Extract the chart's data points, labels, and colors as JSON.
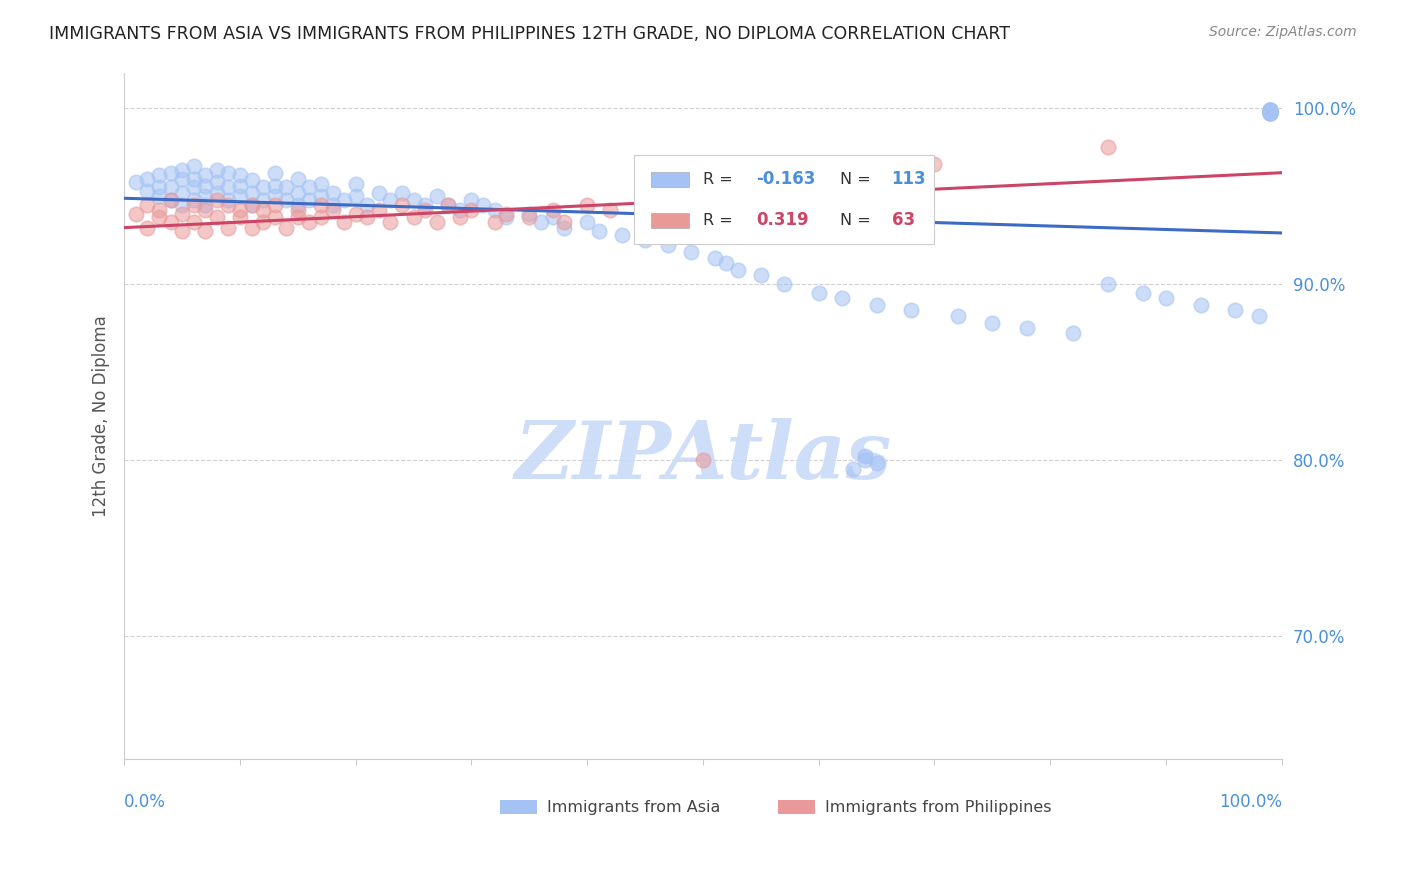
{
  "title": "IMMIGRANTS FROM ASIA VS IMMIGRANTS FROM PHILIPPINES 12TH GRADE, NO DIPLOMA CORRELATION CHART",
  "source": "Source: ZipAtlas.com",
  "ylabel": "12th Grade, No Diploma",
  "legend_blue_label": "Immigrants from Asia",
  "legend_pink_label": "Immigrants from Philippines",
  "r_blue": -0.163,
  "r_pink": 0.319,
  "n_blue": 113,
  "n_pink": 63,
  "blue_color": "#a4c2f4",
  "pink_color": "#ea9999",
  "blue_line_color": "#3d6bc4",
  "pink_line_color": "#cc4466",
  "title_color": "#222222",
  "tick_color": "#4a90d9",
  "watermark_color": "#c9daf8",
  "background_color": "#ffffff",
  "grid_color": "#cccccc",
  "xlim": [
    0.0,
    1.0
  ],
  "ylim": [
    0.63,
    1.02
  ],
  "yticks": [
    0.7,
    0.8,
    0.9,
    1.0
  ],
  "ytick_labels": [
    "70.0%",
    "80.0%",
    "90.0%",
    "100.0%"
  ],
  "blue_scatter_x": [
    0.01,
    0.02,
    0.02,
    0.03,
    0.03,
    0.03,
    0.04,
    0.04,
    0.04,
    0.05,
    0.05,
    0.05,
    0.05,
    0.06,
    0.06,
    0.06,
    0.06,
    0.07,
    0.07,
    0.07,
    0.07,
    0.08,
    0.08,
    0.08,
    0.09,
    0.09,
    0.09,
    0.1,
    0.1,
    0.1,
    0.11,
    0.11,
    0.11,
    0.12,
    0.12,
    0.13,
    0.13,
    0.13,
    0.14,
    0.14,
    0.15,
    0.15,
    0.15,
    0.16,
    0.16,
    0.17,
    0.17,
    0.18,
    0.18,
    0.19,
    0.2,
    0.2,
    0.21,
    0.22,
    0.23,
    0.24,
    0.25,
    0.26,
    0.27,
    0.28,
    0.29,
    0.3,
    0.31,
    0.32,
    0.33,
    0.35,
    0.36,
    0.37,
    0.38,
    0.4,
    0.41,
    0.43,
    0.45,
    0.47,
    0.49,
    0.51,
    0.52,
    0.53,
    0.55,
    0.57,
    0.6,
    0.62,
    0.65,
    0.68,
    0.72,
    0.75,
    0.78,
    0.82,
    0.85,
    0.88,
    0.9,
    0.93,
    0.96,
    0.98,
    0.99,
    0.99,
    0.99,
    0.99,
    0.99,
    0.99,
    0.99,
    0.99,
    0.99,
    0.99,
    0.99,
    0.99,
    0.99,
    0.99,
    0.99,
    0.64,
    0.63,
    0.64,
    0.65
  ],
  "blue_scatter_y": [
    0.958,
    0.953,
    0.96,
    0.95,
    0.955,
    0.962,
    0.948,
    0.955,
    0.963,
    0.945,
    0.952,
    0.96,
    0.965,
    0.948,
    0.955,
    0.96,
    0.967,
    0.95,
    0.956,
    0.962,
    0.945,
    0.952,
    0.958,
    0.965,
    0.948,
    0.955,
    0.963,
    0.95,
    0.956,
    0.962,
    0.945,
    0.952,
    0.959,
    0.948,
    0.955,
    0.95,
    0.956,
    0.963,
    0.948,
    0.955,
    0.945,
    0.952,
    0.96,
    0.948,
    0.955,
    0.95,
    0.957,
    0.945,
    0.952,
    0.948,
    0.95,
    0.957,
    0.945,
    0.952,
    0.948,
    0.952,
    0.948,
    0.945,
    0.95,
    0.945,
    0.942,
    0.948,
    0.945,
    0.942,
    0.938,
    0.94,
    0.935,
    0.938,
    0.932,
    0.935,
    0.93,
    0.928,
    0.925,
    0.922,
    0.918,
    0.915,
    0.912,
    0.908,
    0.905,
    0.9,
    0.895,
    0.892,
    0.888,
    0.885,
    0.882,
    0.878,
    0.875,
    0.872,
    0.9,
    0.895,
    0.892,
    0.888,
    0.885,
    0.882,
    0.999,
    0.998,
    0.997,
    0.999,
    0.998,
    0.997,
    0.998,
    0.999,
    0.997,
    0.998,
    0.999,
    0.997,
    0.998,
    0.997,
    0.999,
    0.8,
    0.795,
    0.802,
    0.798
  ],
  "pink_scatter_x": [
    0.01,
    0.02,
    0.02,
    0.03,
    0.03,
    0.04,
    0.04,
    0.05,
    0.05,
    0.06,
    0.06,
    0.07,
    0.07,
    0.08,
    0.08,
    0.09,
    0.09,
    0.1,
    0.1,
    0.11,
    0.11,
    0.12,
    0.12,
    0.13,
    0.13,
    0.14,
    0.15,
    0.15,
    0.16,
    0.17,
    0.17,
    0.18,
    0.19,
    0.2,
    0.21,
    0.22,
    0.23,
    0.24,
    0.25,
    0.26,
    0.27,
    0.28,
    0.29,
    0.3,
    0.32,
    0.33,
    0.35,
    0.37,
    0.38,
    0.4,
    0.42,
    0.45,
    0.48,
    0.5,
    0.53,
    0.55,
    0.57,
    0.6,
    0.62,
    0.65,
    0.68,
    0.7,
    0.85
  ],
  "pink_scatter_y": [
    0.94,
    0.932,
    0.945,
    0.938,
    0.942,
    0.935,
    0.948,
    0.93,
    0.94,
    0.945,
    0.935,
    0.942,
    0.93,
    0.938,
    0.948,
    0.932,
    0.945,
    0.938,
    0.942,
    0.932,
    0.945,
    0.935,
    0.942,
    0.938,
    0.945,
    0.932,
    0.942,
    0.938,
    0.935,
    0.945,
    0.938,
    0.942,
    0.935,
    0.94,
    0.938,
    0.942,
    0.935,
    0.945,
    0.938,
    0.942,
    0.935,
    0.945,
    0.938,
    0.942,
    0.935,
    0.94,
    0.938,
    0.942,
    0.935,
    0.945,
    0.942,
    0.94,
    0.938,
    0.8,
    0.942,
    0.945,
    0.95,
    0.955,
    0.96,
    0.962,
    0.965,
    0.968,
    0.978
  ]
}
